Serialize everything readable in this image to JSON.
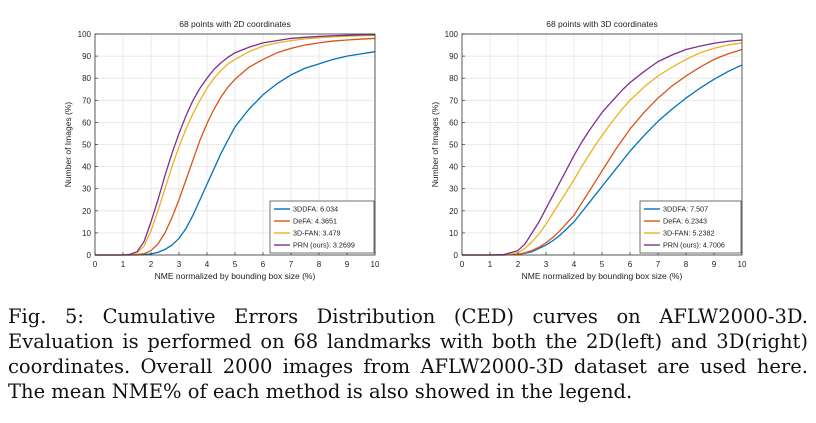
{
  "caption": "Fig. 5: Cumulative Errors Distribution (CED) curves on AFLW2000-3D. Evaluation is performed on 68 landmarks with both the 2D(left) and 3D(right) coordinates. Overall 2000 images from AFLW2000-3D dataset are used here. The mean NME% of each method is also showed in the legend.",
  "colors": {
    "3DDFA": "#0072bd",
    "DeFA": "#d95319",
    "3D-FAN": "#edb120",
    "PRN": "#7e2f8e"
  },
  "chart_data": [
    {
      "type": "line",
      "title": "68 points with 2D coordinates",
      "xlabel": "NME normalized by bounding box size (%)",
      "ylabel": "Number of Images (%)",
      "xlim": [
        0,
        10
      ],
      "ylim": [
        0,
        100
      ],
      "xticks": [
        0,
        1,
        2,
        3,
        4,
        5,
        6,
        7,
        8,
        9,
        10
      ],
      "yticks": [
        0,
        10,
        20,
        30,
        40,
        50,
        60,
        70,
        80,
        90,
        100
      ],
      "grid": true,
      "legend_position": "bottom-right",
      "x": [
        0,
        1,
        1.25,
        1.5,
        1.75,
        2,
        2.25,
        2.5,
        2.75,
        3,
        3.25,
        3.5,
        3.75,
        4,
        4.25,
        4.5,
        4.75,
        5,
        5.5,
        6,
        6.5,
        7,
        7.5,
        8,
        8.5,
        9,
        9.5,
        10
      ],
      "series": [
        {
          "name": "3DDFA: 6.034",
          "key": "3DDFA",
          "values": [
            0,
            0,
            0,
            0,
            0.2,
            0.5,
            1.2,
            2.5,
            4.5,
            7.5,
            12,
            18,
            25,
            32,
            39,
            46,
            52,
            58,
            66,
            72.5,
            77.5,
            81.5,
            84.5,
            86.5,
            88.5,
            90,
            91,
            92
          ]
        },
        {
          "name": "DeFA: 4.3651",
          "key": "DeFA",
          "values": [
            0,
            0,
            0,
            0.2,
            0.6,
            2,
            5,
            10,
            17,
            25,
            34,
            43,
            52,
            59.5,
            66,
            71.5,
            76,
            79.5,
            85,
            88.5,
            91.5,
            93.5,
            95,
            96,
            96.8,
            97.3,
            97.7,
            98
          ]
        },
        {
          "name": "3D-FAN: 3.479",
          "key": "3D-FAN",
          "values": [
            0,
            0,
            0.3,
            1,
            4,
            11,
            20,
            30,
            40,
            49,
            57,
            64,
            70,
            75.5,
            80,
            83.5,
            86.5,
            88.5,
            92,
            94.5,
            96,
            97,
            97.8,
            98.3,
            98.7,
            99,
            99.2,
            99.4
          ]
        },
        {
          "name": "PRN (ours): 3.2699",
          "key": "PRN",
          "values": [
            0,
            0,
            0.3,
            1.5,
            6,
            15,
            25,
            36,
            46,
            55,
            63,
            70,
            75.5,
            80,
            84,
            87,
            89.5,
            91.5,
            94,
            96,
            97,
            98,
            98.5,
            98.9,
            99.2,
            99.4,
            99.6,
            99.7
          ]
        }
      ]
    },
    {
      "type": "line",
      "title": "68 points with 3D coordinates",
      "xlabel": "NME normalized by bounding box size (%)",
      "ylabel": "Number of Images (%)",
      "xlim": [
        0,
        10
      ],
      "ylim": [
        0,
        100
      ],
      "xticks": [
        0,
        1,
        2,
        3,
        4,
        5,
        6,
        7,
        8,
        9,
        10
      ],
      "yticks": [
        0,
        10,
        20,
        30,
        40,
        50,
        60,
        70,
        80,
        90,
        100
      ],
      "grid": true,
      "legend_position": "bottom-right",
      "x": [
        0,
        1,
        1.5,
        2,
        2.25,
        2.5,
        2.75,
        3,
        3.25,
        3.5,
        3.75,
        4,
        4.25,
        4.5,
        4.75,
        5,
        5.25,
        5.5,
        5.75,
        6,
        6.5,
        7,
        7.5,
        8,
        8.5,
        9,
        9.5,
        10
      ],
      "series": [
        {
          "name": "3DDFA: 7.507",
          "key": "3DDFA",
          "values": [
            0,
            0,
            0,
            0.3,
            0.8,
            1.5,
            3,
            4.5,
            6.5,
            9,
            12,
            15,
            19,
            23,
            27,
            31,
            35,
            39,
            43,
            47,
            54,
            60.5,
            66,
            71,
            75.5,
            79.5,
            83,
            86
          ]
        },
        {
          "name": "DeFA: 6.2343",
          "key": "DeFA",
          "values": [
            0,
            0,
            0,
            0.3,
            1,
            2,
            3.5,
            5.5,
            8,
            11,
            14.5,
            18,
            23,
            28,
            33,
            38,
            43,
            48,
            52.5,
            57,
            64.5,
            71,
            76.5,
            81,
            85,
            88.5,
            91,
            93
          ]
        },
        {
          "name": "3D-FAN: 5.2382",
          "key": "3D-FAN",
          "values": [
            0,
            0,
            0,
            1,
            3,
            6,
            9.5,
            14,
            19,
            24,
            29,
            34,
            39.5,
            44.5,
            49.5,
            54,
            58.5,
            62.5,
            66.5,
            70,
            76,
            81,
            85,
            88.5,
            91.5,
            93.5,
            95,
            96
          ]
        },
        {
          "name": "PRN (ours): 4.7006",
          "key": "PRN",
          "values": [
            0,
            0,
            0.2,
            2,
            5,
            10,
            15,
            21,
            27,
            33,
            39,
            45,
            50.5,
            55.5,
            60,
            64.5,
            68,
            71.5,
            75,
            78,
            83,
            87.5,
            90.5,
            93,
            94.5,
            95.8,
            96.7,
            97.3
          ]
        }
      ]
    }
  ]
}
